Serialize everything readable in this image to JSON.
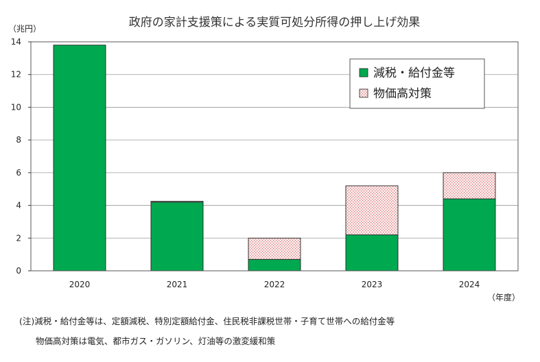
{
  "chart_data": {
    "type": "bar",
    "stacked": true,
    "title": "政府の家計支援策による実質可処分所得の押し上げ効果",
    "y_unit_label": "（兆円）",
    "x_unit_label": "（年度）",
    "categories": [
      "2020",
      "2021",
      "2022",
      "2023",
      "2024"
    ],
    "series": [
      {
        "name": "減税・給付金等",
        "values": [
          13.8,
          4.2,
          0.7,
          2.2,
          4.4
        ],
        "color": "#00a94f",
        "pattern": "solid"
      },
      {
        "name": "物価高対策",
        "values": [
          0.0,
          0.05,
          1.3,
          3.0,
          1.6
        ],
        "color": "#f7e3e3",
        "pattern": "dotted-red"
      }
    ],
    "ylim": [
      0,
      14
    ],
    "yticks": [
      0,
      2,
      4,
      6,
      8,
      10,
      12,
      14
    ],
    "grid": true,
    "legend_position": "top-right"
  },
  "notes": [
    "(注)減税・給付金等は、定額減税、特別定額給付金、住民税非課税世帯・子育て世帯への給付金等",
    "物価高対策は電気、都市ガス・ガソリン、灯油等の激変緩和策"
  ]
}
